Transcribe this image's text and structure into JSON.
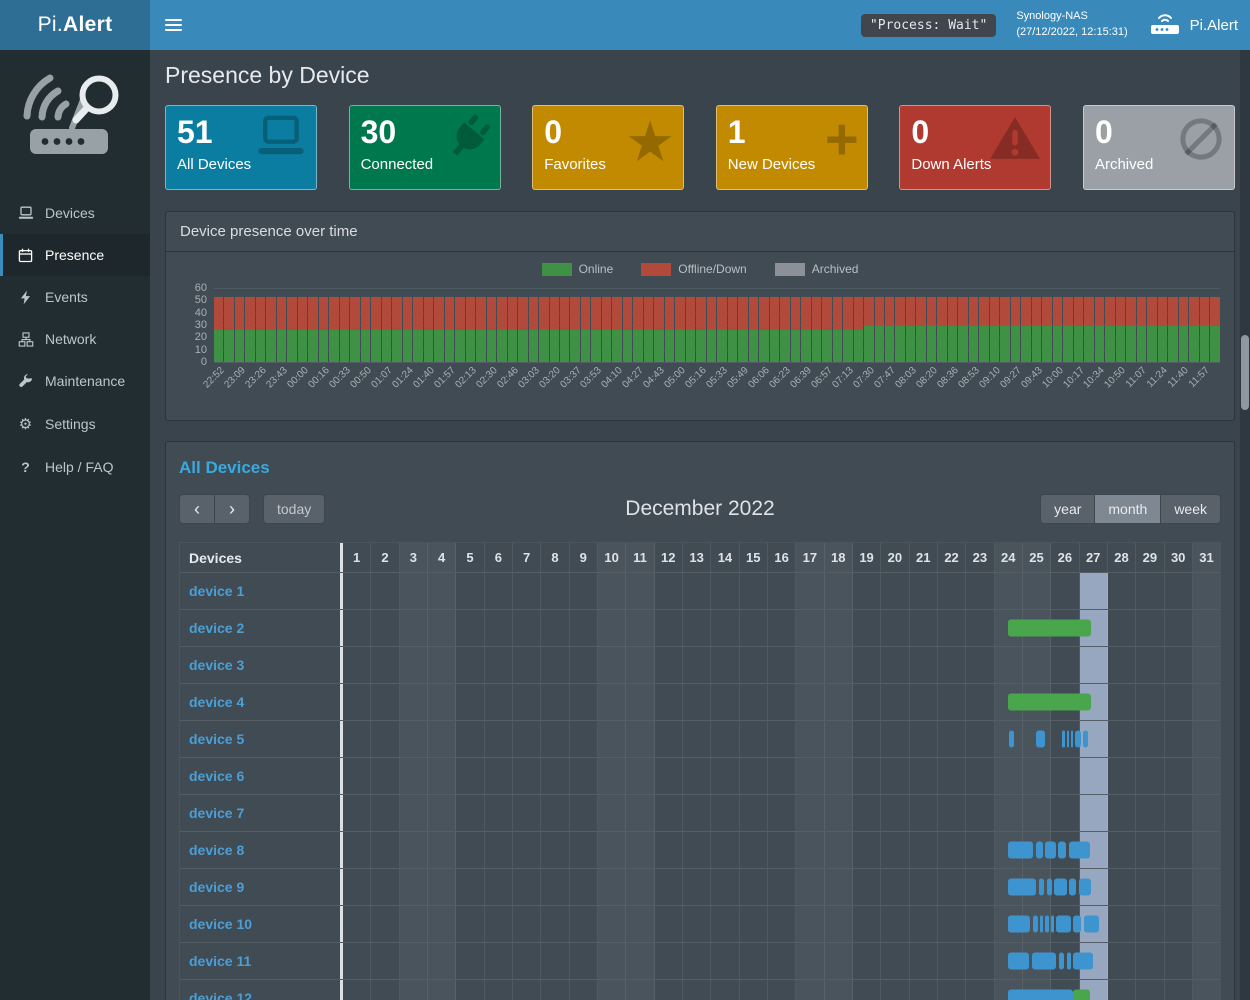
{
  "navbar": {
    "brand_regular": "Pi.",
    "brand_bold": "Alert",
    "process_status": "\"Process: Wait\"",
    "device_name": "Synology-NAS",
    "timestamp": "(27/12/2022, 12:15:31)",
    "app_name": "Pi.Alert"
  },
  "sidebar": {
    "items": [
      {
        "label": "Devices",
        "icon": "laptop-icon",
        "active": false
      },
      {
        "label": "Presence",
        "icon": "calendar-icon",
        "active": true
      },
      {
        "label": "Events",
        "icon": "bolt-icon",
        "active": false
      },
      {
        "label": "Network",
        "icon": "network-icon",
        "active": false
      },
      {
        "label": "Maintenance",
        "icon": "wrench-icon",
        "active": false
      },
      {
        "label": "Settings",
        "icon": "gear-icon",
        "active": false
      },
      {
        "label": "Help / FAQ",
        "icon": "question-icon",
        "active": false
      }
    ]
  },
  "page": {
    "title": "Presence by Device"
  },
  "info_boxes": [
    {
      "value": "51",
      "label": "All Devices",
      "color": "#0b7da1",
      "icon": "laptop-icon"
    },
    {
      "value": "30",
      "label": "Connected",
      "color": "#00784e",
      "icon": "plug-icon"
    },
    {
      "value": "0",
      "label": "Favorites",
      "color": "#c28a00",
      "icon": "star-icon"
    },
    {
      "value": "1",
      "label": "New Devices",
      "color": "#c28a00",
      "icon": "plus-icon"
    },
    {
      "value": "0",
      "label": "Down Alerts",
      "color": "#b03a30",
      "icon": "warning-icon"
    },
    {
      "value": "0",
      "label": "Archived",
      "color": "#9aa0a5",
      "icon": "eye-slash-icon"
    }
  ],
  "chart_panel": {
    "title": "Device presence over time"
  },
  "chart_data": {
    "type": "bar",
    "stacked": true,
    "title": "Device presence over time",
    "legend": [
      {
        "label": "Online",
        "color": "#3f9146"
      },
      {
        "label": "Offline/Down",
        "color": "#b24a3b"
      },
      {
        "label": "Archived",
        "color": "#8b9197"
      }
    ],
    "ylim": [
      0,
      60
    ],
    "y_ticks": [
      60,
      50,
      40,
      30,
      20,
      10,
      0
    ],
    "x_labels": [
      "22:52",
      "23:09",
      "23:26",
      "23:43",
      "00:00",
      "00:16",
      "00:33",
      "00:50",
      "01:07",
      "01:24",
      "01:40",
      "01:57",
      "02:13",
      "02:30",
      "02:46",
      "03:03",
      "03:20",
      "03:37",
      "03:53",
      "04:10",
      "04:27",
      "04:43",
      "05:00",
      "05:16",
      "05:33",
      "05:49",
      "06:06",
      "06:23",
      "06:39",
      "06:57",
      "07:13",
      "07:30",
      "07:47",
      "08:03",
      "08:20",
      "08:36",
      "08:53",
      "09:10",
      "09:27",
      "09:43",
      "10:00",
      "10:17",
      "10:34",
      "10:50",
      "11:07",
      "11:24",
      "11:40",
      "11:57"
    ],
    "series": [
      {
        "name": "Online",
        "color": "#3f9146",
        "values": [
          26,
          26,
          26,
          26,
          26,
          26,
          26,
          26,
          26,
          26,
          26,
          26,
          26,
          26,
          26,
          26,
          26,
          26,
          26,
          26,
          26,
          26,
          26,
          26,
          26,
          26,
          26,
          26,
          26,
          26,
          26,
          26,
          26,
          26,
          26,
          26,
          26,
          26,
          26,
          26,
          26,
          26,
          26,
          26,
          26,
          26,
          26,
          26,
          26,
          26,
          26,
          26,
          26,
          26,
          26,
          26,
          26,
          26,
          26,
          26,
          26,
          26,
          29,
          29,
          29,
          29,
          29,
          29,
          29,
          29,
          29,
          29,
          29,
          29,
          29,
          29,
          29,
          29,
          29,
          29,
          29,
          29,
          29,
          29,
          29,
          29,
          29,
          29,
          29,
          29,
          29,
          29,
          29,
          29,
          29,
          29
        ]
      },
      {
        "name": "Offline/Down",
        "color": "#b24a3b",
        "values": [
          27,
          27,
          27,
          27,
          27,
          27,
          27,
          27,
          27,
          27,
          27,
          27,
          27,
          27,
          27,
          27,
          27,
          27,
          27,
          27,
          27,
          27,
          27,
          27,
          27,
          27,
          27,
          27,
          27,
          27,
          27,
          27,
          27,
          27,
          27,
          27,
          27,
          27,
          27,
          27,
          27,
          27,
          27,
          27,
          27,
          27,
          27,
          27,
          27,
          27,
          27,
          27,
          27,
          27,
          27,
          27,
          27,
          27,
          27,
          27,
          27,
          27,
          24,
          24,
          24,
          24,
          24,
          24,
          24,
          24,
          24,
          24,
          24,
          24,
          24,
          24,
          24,
          24,
          24,
          24,
          24,
          24,
          24,
          24,
          24,
          24,
          24,
          24,
          24,
          24,
          24,
          24,
          24,
          24,
          24,
          24
        ]
      }
    ]
  },
  "calendar": {
    "panel_title": "All Devices",
    "toolbar": {
      "today_label": "today",
      "title": "December 2022",
      "views": [
        {
          "label": "year",
          "active": false
        },
        {
          "label": "month",
          "active": true
        },
        {
          "label": "week",
          "active": false
        }
      ]
    },
    "header": {
      "devices_label": "Devices"
    },
    "days": [
      1,
      2,
      3,
      4,
      5,
      6,
      7,
      8,
      9,
      10,
      11,
      12,
      13,
      14,
      15,
      16,
      17,
      18,
      19,
      20,
      21,
      22,
      23,
      24,
      25,
      26,
      27,
      28,
      29,
      30,
      31
    ],
    "weekend_days": [
      3,
      4,
      10,
      11,
      17,
      18,
      24,
      25,
      31
    ],
    "today": 27,
    "rows": [
      {
        "name": "device 1",
        "bars": []
      },
      {
        "name": "device 2",
        "bars": [
          {
            "s": 24.5,
            "e": 27.45,
            "c": "green"
          }
        ]
      },
      {
        "name": "device 3",
        "bars": []
      },
      {
        "name": "device 4",
        "bars": [
          {
            "s": 24.5,
            "e": 27.45,
            "c": "green"
          }
        ]
      },
      {
        "name": "device 5",
        "bars": [
          {
            "s": 24.55,
            "e": 24.72,
            "c": "blue"
          },
          {
            "s": 25.5,
            "e": 25.82,
            "c": "blue"
          },
          {
            "s": 26.42,
            "e": 26.52,
            "c": "blue"
          },
          {
            "s": 26.58,
            "e": 26.66,
            "c": "blue"
          },
          {
            "s": 26.72,
            "e": 26.8,
            "c": "blue"
          },
          {
            "s": 26.86,
            "e": 27.1,
            "c": "blue"
          },
          {
            "s": 27.16,
            "e": 27.34,
            "c": "blue"
          }
        ]
      },
      {
        "name": "device 6",
        "bars": []
      },
      {
        "name": "device 7",
        "bars": []
      },
      {
        "name": "device 8",
        "bars": [
          {
            "s": 24.5,
            "e": 25.4,
            "c": "blue"
          },
          {
            "s": 25.5,
            "e": 25.75,
            "c": "blue"
          },
          {
            "s": 25.83,
            "e": 26.2,
            "c": "blue"
          },
          {
            "s": 26.28,
            "e": 26.56,
            "c": "blue"
          },
          {
            "s": 26.65,
            "e": 27.42,
            "c": "blue"
          }
        ]
      },
      {
        "name": "device 9",
        "bars": [
          {
            "s": 24.5,
            "e": 25.5,
            "c": "blue"
          },
          {
            "s": 25.6,
            "e": 25.78,
            "c": "blue"
          },
          {
            "s": 25.88,
            "e": 26.06,
            "c": "blue"
          },
          {
            "s": 26.14,
            "e": 26.58,
            "c": "blue"
          },
          {
            "s": 26.68,
            "e": 26.9,
            "c": "blue"
          },
          {
            "s": 27.0,
            "e": 27.45,
            "c": "blue"
          }
        ]
      },
      {
        "name": "device 10",
        "bars": [
          {
            "s": 24.5,
            "e": 25.3,
            "c": "blue"
          },
          {
            "s": 25.4,
            "e": 25.55,
            "c": "blue"
          },
          {
            "s": 25.62,
            "e": 25.75,
            "c": "blue"
          },
          {
            "s": 25.82,
            "e": 25.95,
            "c": "blue"
          },
          {
            "s": 26.02,
            "e": 26.15,
            "c": "blue"
          },
          {
            "s": 26.22,
            "e": 26.72,
            "c": "blue"
          },
          {
            "s": 26.8,
            "e": 27.1,
            "c": "blue"
          },
          {
            "s": 27.18,
            "e": 27.72,
            "c": "blue"
          }
        ]
      },
      {
        "name": "device 11",
        "bars": [
          {
            "s": 24.5,
            "e": 25.25,
            "c": "blue"
          },
          {
            "s": 25.35,
            "e": 26.2,
            "c": "blue"
          },
          {
            "s": 26.3,
            "e": 26.5,
            "c": "blue"
          },
          {
            "s": 26.58,
            "e": 26.72,
            "c": "blue"
          },
          {
            "s": 26.8,
            "e": 27.5,
            "c": "blue"
          }
        ]
      },
      {
        "name": "device 12",
        "bars": [
          {
            "s": 24.5,
            "e": 26.82,
            "c": "blue"
          },
          {
            "s": 26.82,
            "e": 27.42,
            "c": "green"
          }
        ]
      }
    ]
  },
  "colors": {
    "accent": "#3c8dbc",
    "online": "#3f9146",
    "offline": "#b24a3b",
    "archived": "#8b9197",
    "event_blue": "#3d94cf",
    "event_green": "#49a64d",
    "today_highlight": "#98a7c0"
  }
}
